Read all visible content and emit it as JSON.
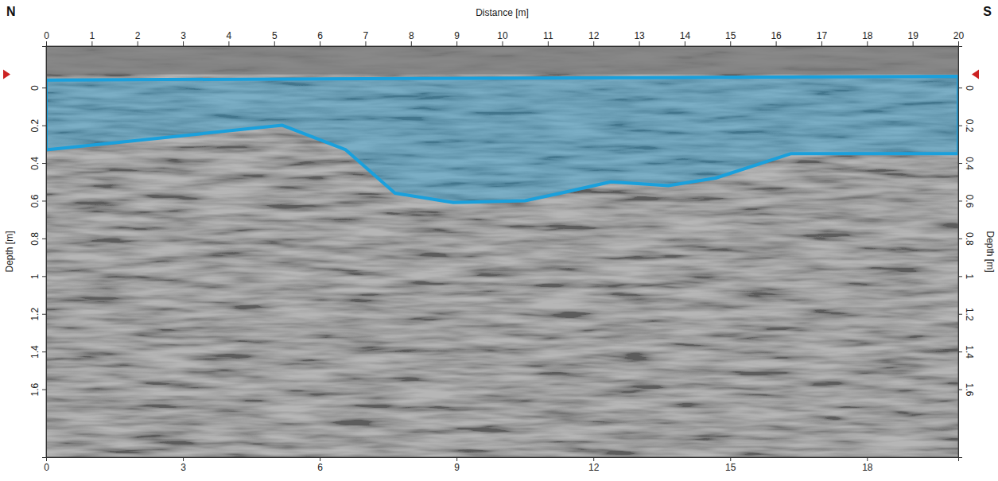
{
  "chart_data": {
    "type": "radargram",
    "x_label": "Distance [m]",
    "y_label": "Depth [m]",
    "y2_label": "Depth [m]",
    "direction_labels": [
      "N",
      "S"
    ],
    "xlim": [
      0,
      20
    ],
    "xticks": [
      0,
      1,
      2,
      3,
      4,
      5,
      6,
      7,
      8,
      9,
      10,
      11,
      12,
      13,
      14,
      15,
      16,
      17,
      18,
      19,
      20
    ],
    "x2lim": [
      0,
      20
    ],
    "x2ticks": [
      0,
      3,
      6,
      9,
      12,
      15,
      18
    ],
    "ylim": [
      -0.22,
      1.96
    ],
    "yticks": [
      0,
      0.2,
      0.4,
      0.6,
      0.8,
      1,
      1.2,
      1.4,
      1.6
    ],
    "y2ticks": [
      0,
      0.2,
      0.4,
      0.6,
      0.8,
      1,
      1.2,
      1.4,
      1.6
    ],
    "surface_marker": {
      "value": -0.07,
      "color": "#cc2222"
    },
    "series": [
      {
        "type": "area",
        "color": "#1aa0dc",
        "x": [
          0,
          20,
          20,
          17.3,
          16.34,
          14.68,
          13.64,
          12.38,
          11.28,
          10.5,
          8.93,
          7.65,
          6.57,
          5.18,
          0
        ],
        "values": [
          -0.04,
          -0.06,
          0.35,
          0.35,
          0.35,
          0.48,
          0.52,
          0.5,
          0.56,
          0.6,
          0.61,
          0.56,
          0.33,
          0.2,
          0.33
        ]
      }
    ]
  }
}
